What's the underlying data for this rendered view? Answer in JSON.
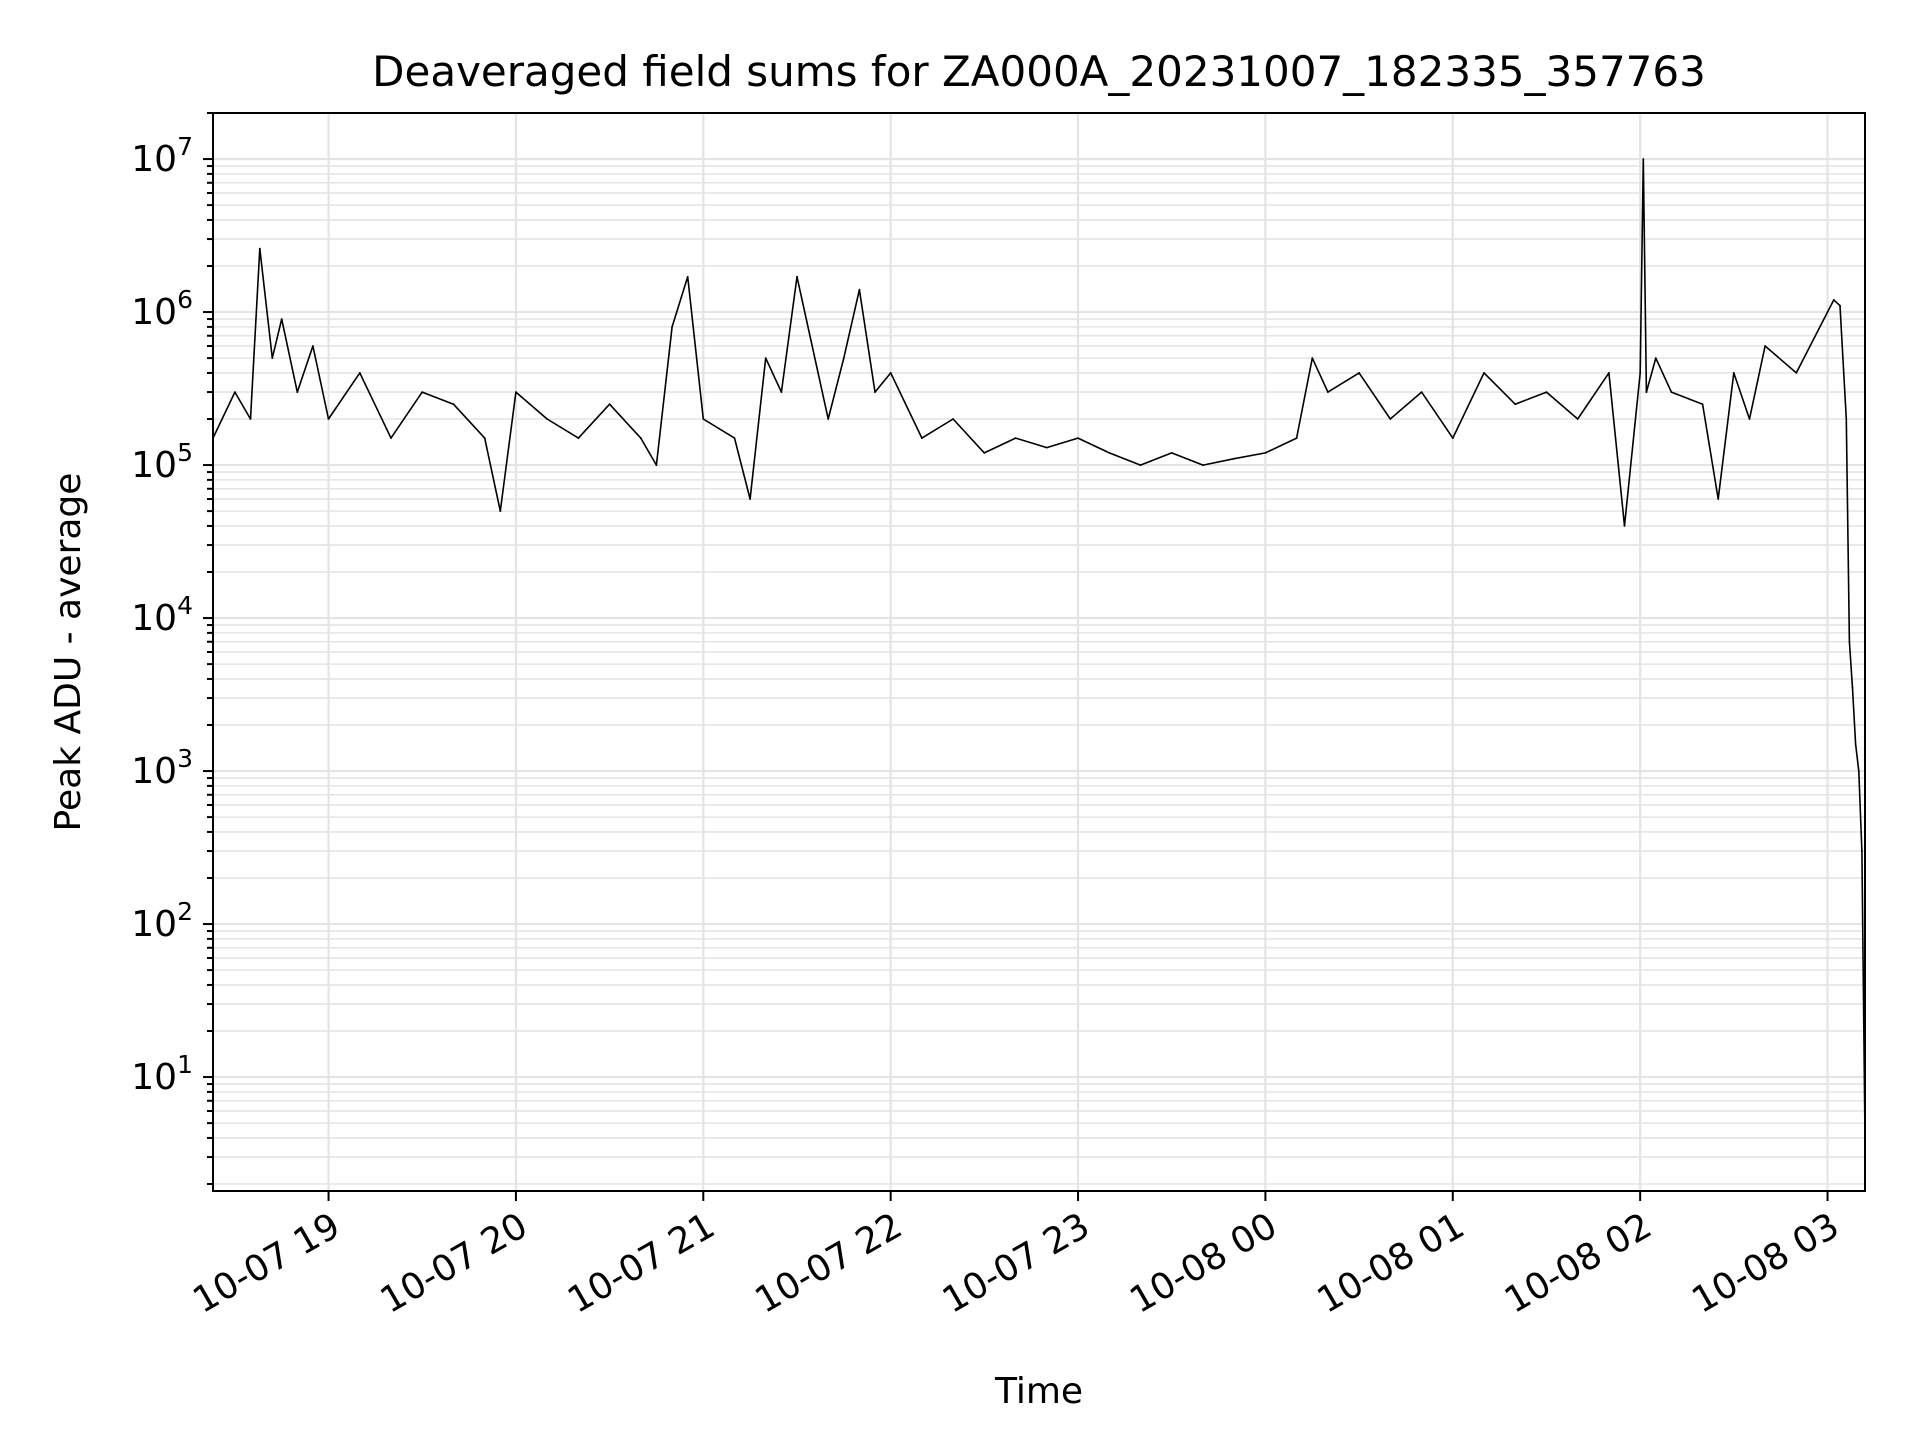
{
  "chart_data": {
    "type": "line",
    "title": "Deaveraged field sums for ZA000A_20231007_182335_357763",
    "xlabel": "Time",
    "ylabel": "Peak ADU - average",
    "yscale": "log",
    "grid": true,
    "line_color": "#000000",
    "grid_color": "#e4e4e4",
    "xlim": [
      "2023-10-07 18:23",
      "2023-10-08 03:12"
    ],
    "ylim": [
      1.8,
      20000000
    ],
    "x_ticks": [
      {
        "value": "2023-10-07 19:00",
        "label": "10-07 19"
      },
      {
        "value": "2023-10-07 20:00",
        "label": "10-07 20"
      },
      {
        "value": "2023-10-07 21:00",
        "label": "10-07 21"
      },
      {
        "value": "2023-10-07 22:00",
        "label": "10-07 22"
      },
      {
        "value": "2023-10-07 23:00",
        "label": "10-07 23"
      },
      {
        "value": "2023-10-08 00:00",
        "label": "10-08 00"
      },
      {
        "value": "2023-10-08 01:00",
        "label": "10-08 01"
      },
      {
        "value": "2023-10-08 02:00",
        "label": "10-08 02"
      },
      {
        "value": "2023-10-08 03:00",
        "label": "10-08 03"
      }
    ],
    "y_ticks": [
      {
        "value": 10,
        "base": "10",
        "exp": "1"
      },
      {
        "value": 100,
        "base": "10",
        "exp": "2"
      },
      {
        "value": 1000,
        "base": "10",
        "exp": "3"
      },
      {
        "value": 10000,
        "base": "10",
        "exp": "4"
      },
      {
        "value": 100000,
        "base": "10",
        "exp": "5"
      },
      {
        "value": 1000000,
        "base": "10",
        "exp": "6"
      },
      {
        "value": 10000000,
        "base": "10",
        "exp": "7"
      }
    ],
    "series": [
      {
        "x": [
          "2023-10-07 18:23",
          "2023-10-07 18:30",
          "2023-10-07 18:35",
          "2023-10-07 18:38",
          "2023-10-07 18:42",
          "2023-10-07 18:45",
          "2023-10-07 18:50",
          "2023-10-07 18:55",
          "2023-10-07 19:00",
          "2023-10-07 19:10",
          "2023-10-07 19:20",
          "2023-10-07 19:30",
          "2023-10-07 19:40",
          "2023-10-07 19:50",
          "2023-10-07 19:55",
          "2023-10-07 20:00",
          "2023-10-07 20:10",
          "2023-10-07 20:20",
          "2023-10-07 20:30",
          "2023-10-07 20:40",
          "2023-10-07 20:45",
          "2023-10-07 20:50",
          "2023-10-07 20:55",
          "2023-10-07 21:00",
          "2023-10-07 21:10",
          "2023-10-07 21:15",
          "2023-10-07 21:20",
          "2023-10-07 21:25",
          "2023-10-07 21:30",
          "2023-10-07 21:40",
          "2023-10-07 21:45",
          "2023-10-07 21:50",
          "2023-10-07 21:55",
          "2023-10-07 22:00",
          "2023-10-07 22:10",
          "2023-10-07 22:20",
          "2023-10-07 22:30",
          "2023-10-07 22:40",
          "2023-10-07 22:50",
          "2023-10-07 23:00",
          "2023-10-07 23:10",
          "2023-10-07 23:20",
          "2023-10-07 23:30",
          "2023-10-07 23:40",
          "2023-10-07 23:50",
          "2023-10-08 00:00",
          "2023-10-08 00:10",
          "2023-10-08 00:15",
          "2023-10-08 00:20",
          "2023-10-08 00:30",
          "2023-10-08 00:40",
          "2023-10-08 00:50",
          "2023-10-08 01:00",
          "2023-10-08 01:10",
          "2023-10-08 01:20",
          "2023-10-08 01:30",
          "2023-10-08 01:40",
          "2023-10-08 01:50",
          "2023-10-08 01:55",
          "2023-10-08 02:00",
          "2023-10-08 02:01",
          "2023-10-08 02:02",
          "2023-10-08 02:05",
          "2023-10-08 02:10",
          "2023-10-08 02:20",
          "2023-10-08 02:25",
          "2023-10-08 02:30",
          "2023-10-08 02:35",
          "2023-10-08 02:40",
          "2023-10-08 02:50",
          "2023-10-08 03:00",
          "2023-10-08 03:02",
          "2023-10-08 03:04",
          "2023-10-08 03:06",
          "2023-10-08 03:07",
          "2023-10-08 03:08",
          "2023-10-08 03:09",
          "2023-10-08 03:10",
          "2023-10-08 03:11",
          "2023-10-08 03:12"
        ],
        "y": [
          150000,
          300000,
          200000,
          2600000,
          500000,
          900000,
          300000,
          600000,
          200000,
          400000,
          150000,
          300000,
          250000,
          150000,
          50000,
          300000,
          200000,
          150000,
          250000,
          150000,
          100000,
          800000,
          1700000,
          200000,
          150000,
          60000,
          500000,
          300000,
          1700000,
          200000,
          500000,
          1400000,
          300000,
          400000,
          150000,
          200000,
          120000,
          150000,
          130000,
          150000,
          120000,
          100000,
          120000,
          100000,
          110000,
          120000,
          150000,
          500000,
          300000,
          400000,
          200000,
          300000,
          150000,
          400000,
          250000,
          300000,
          200000,
          400000,
          40000,
          400000,
          10000000,
          300000,
          500000,
          300000,
          250000,
          60000,
          400000,
          200000,
          600000,
          400000,
          1000000,
          1200000,
          1100000,
          200000,
          7000,
          3500,
          1500,
          1000,
          300,
          4
        ]
      }
    ]
  }
}
